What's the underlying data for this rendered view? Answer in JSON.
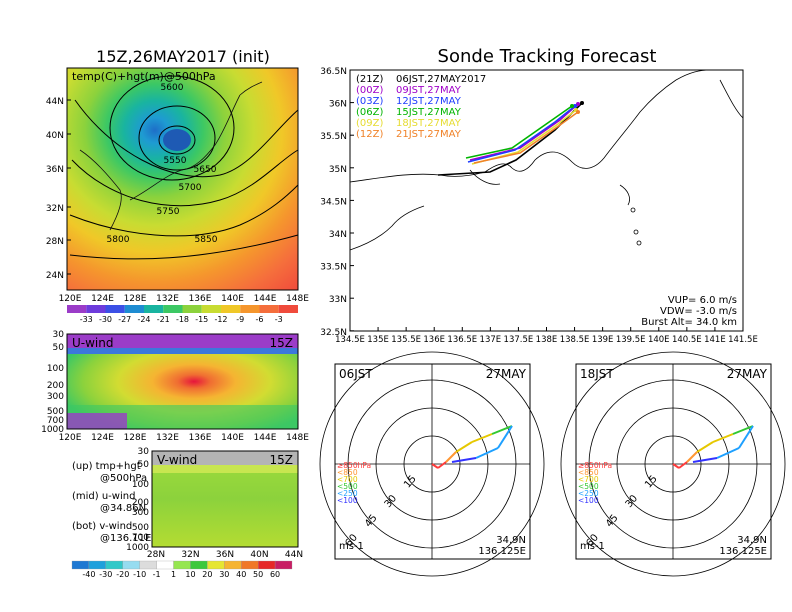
{
  "map_panel": {
    "title": "15Z,26MAY2017 (init)",
    "subtitle": "temp(C)+hgt(m)@500hPa",
    "lat_ticks": [
      "44N",
      "40N",
      "36N",
      "32N",
      "28N",
      "24N"
    ],
    "lon_ticks": [
      "120E",
      "124E",
      "128E",
      "132E",
      "136E",
      "140E",
      "144E",
      "148E"
    ],
    "contour_labels": [
      "5600",
      "5550",
      "5650",
      "5700",
      "5750",
      "5800",
      "5850"
    ],
    "colorbar_labels": [
      "-33",
      "-30",
      "-27",
      "-24",
      "-21",
      "-18",
      "-15",
      "-12",
      "-9",
      "-6",
      "-3"
    ]
  },
  "u_panel": {
    "title": "U-wind",
    "time": "15Z",
    "p_ticks": [
      "30",
      "50",
      "100",
      "200",
      "300",
      "500",
      "700",
      "1000"
    ],
    "lon_ticks": [
      "120E",
      "124E",
      "128E",
      "132E",
      "136E",
      "140E",
      "144E",
      "148E"
    ]
  },
  "v_panel": {
    "title": "V-wind",
    "time": "15Z",
    "p_ticks": [
      "30",
      "50",
      "100",
      "200",
      "300",
      "500",
      "700",
      "1000"
    ],
    "lat_ticks": [
      "28N",
      "32N",
      "36N",
      "40N",
      "44N"
    ],
    "colorbar_labels": [
      "-40",
      "-30",
      "-20",
      "-10",
      "-1",
      "1",
      "10",
      "20",
      "30",
      "40",
      "50",
      "60"
    ]
  },
  "legend_text": {
    "up_line1": "(up)  tmp+hgt",
    "up_line2": "@500hPa",
    "mid_line1": "(mid)  u-wind",
    "mid_line2": "@34.86N",
    "bot_line1": "(bot)  v-wind",
    "bot_line2": "@136.11E"
  },
  "forecast": {
    "title": "Sonde Tracking Forecast",
    "lat_ticks": [
      "36.5N",
      "36N",
      "35.5N",
      "35N",
      "34.5N",
      "34N",
      "33.5N",
      "33N",
      "32.5N"
    ],
    "lon_ticks": [
      "134.5E",
      "135E",
      "135.5E",
      "136E",
      "136.5E",
      "137E",
      "137.5E",
      "138E",
      "138.5E",
      "139E",
      "139.5E",
      "140E",
      "140.5E",
      "141E",
      "141.5E"
    ],
    "runs": [
      {
        "tag": "(21Z)",
        "label": "06JST,27MAY2017",
        "color": "#000000"
      },
      {
        "tag": "(00Z)",
        "label": "09JST,27MAY",
        "color": "#a000c8"
      },
      {
        "tag": "(03Z)",
        "label": "12JST,27MAY",
        "color": "#1e3cff"
      },
      {
        "tag": "(06Z)",
        "label": "15JST,27MAY",
        "color": "#00b400"
      },
      {
        "tag": "(09Z)",
        "label": "18JST,27MAY",
        "color": "#e6dc32"
      },
      {
        "tag": "(12Z)",
        "label": "21JST,27MAY",
        "color": "#f08228"
      }
    ],
    "vup": "VUP=  6.0  m/s",
    "vdw": "VDW=  -3.0  m/s",
    "burst": "Burst  Alt=  34.0  km"
  },
  "hodographs": [
    {
      "jst": "06JST",
      "date": "27MAY",
      "lat": "34.9N",
      "lon": "136.125E",
      "unit": "ms-1",
      "rings": [
        "15",
        "30",
        "45",
        "60"
      ],
      "legend": [
        {
          "t": "≥850hPa",
          "c": "#ff3c3c"
        },
        {
          "t": "<850",
          "c": "#ff9632"
        },
        {
          "t": "<700",
          "c": "#e6c800"
        },
        {
          "t": "<500",
          "c": "#32c832"
        },
        {
          "t": "<250",
          "c": "#1ea0ff"
        },
        {
          "t": "<100",
          "c": "#3232ff"
        }
      ]
    },
    {
      "jst": "18JST",
      "date": "27MAY",
      "lat": "34.9N",
      "lon": "136.125E",
      "unit": "ms-1",
      "rings": [
        "15",
        "30",
        "45",
        "60"
      ],
      "legend": [
        {
          "t": "≥850hPa",
          "c": "#ff3c3c"
        },
        {
          "t": "<850",
          "c": "#ff9632"
        },
        {
          "t": "<700",
          "c": "#e6c800"
        },
        {
          "t": "<500",
          "c": "#32c832"
        },
        {
          "t": "<250",
          "c": "#1ea0ff"
        },
        {
          "t": "<100",
          "c": "#3232ff"
        }
      ]
    }
  ]
}
